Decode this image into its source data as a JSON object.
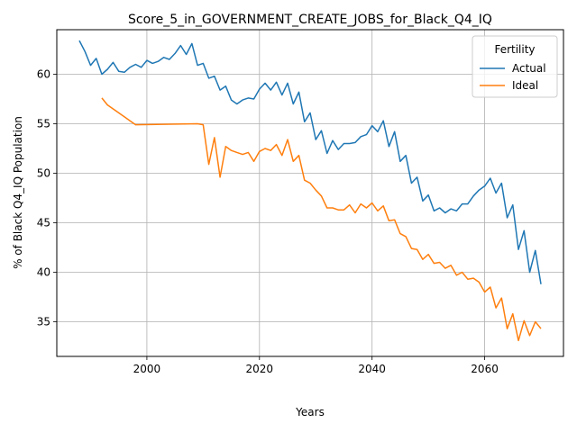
{
  "chart_data": {
    "type": "line",
    "title": "Score_5_in_GOVERNMENT_CREATE_JOBS_for_Black_Q4_IQ",
    "xlabel": "Years",
    "ylabel": "% of Black Q4_IQ Population",
    "xlim": [
      1984,
      2074
    ],
    "ylim": [
      31.5,
      64.5
    ],
    "xticks": [
      2000,
      2020,
      2040,
      2060
    ],
    "yticks": [
      35,
      40,
      45,
      50,
      55,
      60
    ],
    "grid": true,
    "legend": {
      "title": "Fertility",
      "position": "top-right"
    },
    "series": [
      {
        "name": "Actual",
        "color": "#1f77b4",
        "x": [
          1988,
          1989,
          1990,
          1991,
          1992,
          1993,
          1994,
          1995,
          1996,
          1997,
          1998,
          1999,
          2000,
          2001,
          2002,
          2003,
          2004,
          2005,
          2006,
          2007,
          2008,
          2009,
          2010,
          2011,
          2012,
          2013,
          2014,
          2015,
          2016,
          2017,
          2018,
          2019,
          2020,
          2021,
          2022,
          2023,
          2024,
          2025,
          2026,
          2027,
          2028,
          2029,
          2030,
          2031,
          2032,
          2033,
          2034,
          2035,
          2036,
          2037,
          2038,
          2039,
          2040,
          2041,
          2042,
          2043,
          2044,
          2045,
          2046,
          2047,
          2048,
          2049,
          2050,
          2051,
          2052,
          2053,
          2054,
          2055,
          2056,
          2057,
          2058,
          2059,
          2060,
          2061,
          2062,
          2063,
          2064,
          2065,
          2066,
          2067,
          2068,
          2069,
          2070
        ],
        "values": [
          63.4,
          62.3,
          60.9,
          61.6,
          60.0,
          60.5,
          61.2,
          60.3,
          60.2,
          60.7,
          61.0,
          60.7,
          61.4,
          61.1,
          61.3,
          61.7,
          61.5,
          62.1,
          62.9,
          62.0,
          63.1,
          60.9,
          61.1,
          59.6,
          59.8,
          58.4,
          58.8,
          57.4,
          57.0,
          57.4,
          57.6,
          57.5,
          58.5,
          59.1,
          58.4,
          59.2,
          57.9,
          59.1,
          57.0,
          58.2,
          55.2,
          56.1,
          53.4,
          54.3,
          52.0,
          53.3,
          52.4,
          53.0,
          53.0,
          53.1,
          53.7,
          53.9,
          54.8,
          54.2,
          55.3,
          52.7,
          54.2,
          51.2,
          51.8,
          49.0,
          49.6,
          47.2,
          47.8,
          46.2,
          46.5,
          46.0,
          46.4,
          46.2,
          46.9,
          46.9,
          47.7,
          48.3,
          48.7,
          49.5,
          48.0,
          49.0,
          45.5,
          46.8,
          42.3,
          44.2,
          40.0,
          42.2,
          38.8
        ]
      },
      {
        "name": "Ideal",
        "color": "#ff7f0e",
        "x": [
          1992,
          1993,
          1994,
          1995,
          1996,
          1997,
          1998,
          2009,
          2010,
          2011,
          2012,
          2013,
          2014,
          2015,
          2016,
          2017,
          2018,
          2019,
          2020,
          2021,
          2022,
          2023,
          2024,
          2025,
          2026,
          2027,
          2028,
          2029,
          2030,
          2031,
          2032,
          2033,
          2034,
          2035,
          2036,
          2037,
          2038,
          2039,
          2040,
          2041,
          2042,
          2043,
          2044,
          2045,
          2046,
          2047,
          2048,
          2049,
          2050,
          2051,
          2052,
          2053,
          2054,
          2055,
          2056,
          2057,
          2058,
          2059,
          2060,
          2061,
          2062,
          2063,
          2064,
          2065,
          2066,
          2067,
          2068,
          2069,
          2070
        ],
        "values": [
          57.6,
          56.9,
          56.5,
          56.1,
          55.7,
          55.3,
          54.9,
          55.0,
          54.9,
          50.9,
          53.6,
          49.6,
          52.7,
          52.3,
          52.1,
          51.9,
          52.1,
          51.2,
          52.2,
          52.5,
          52.3,
          52.9,
          51.8,
          53.4,
          51.2,
          51.8,
          49.3,
          49.0,
          48.3,
          47.7,
          46.5,
          46.5,
          46.3,
          46.3,
          46.8,
          46.0,
          46.9,
          46.5,
          47.0,
          46.2,
          46.7,
          45.2,
          45.3,
          43.9,
          43.6,
          42.4,
          42.3,
          41.3,
          41.8,
          40.9,
          41.0,
          40.4,
          40.7,
          39.7,
          40.0,
          39.3,
          39.4,
          39.0,
          38.0,
          38.5,
          36.4,
          37.4,
          34.3,
          35.8,
          33.1,
          35.1,
          33.6,
          35.0,
          34.3
        ]
      }
    ]
  }
}
